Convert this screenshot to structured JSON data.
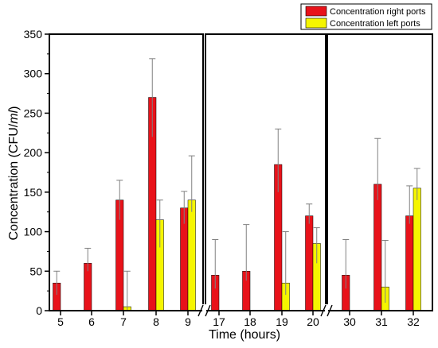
{
  "chart_data": {
    "type": "bar",
    "xlabel": "Time (hours)",
    "ylabel_main": "Concentration (CFU/",
    "ylabel_unit": "ml",
    "ylabel_close": ")",
    "ylim": [
      0,
      350
    ],
    "yticks": [
      "0",
      "50",
      "100",
      "150",
      "200",
      "250",
      "300",
      "350"
    ],
    "ytick_values": [
      0,
      50,
      100,
      150,
      200,
      250,
      300,
      350
    ],
    "grid": false,
    "legend_position": "top-right",
    "categories": [
      "5",
      "6",
      "7",
      "8",
      "9",
      "17",
      "18",
      "19",
      "20",
      "30",
      "31",
      "32"
    ],
    "panels": [
      [
        0,
        4
      ],
      [
        5,
        8
      ],
      [
        9,
        11
      ]
    ],
    "series": [
      {
        "name": "Concentration right ports",
        "color": "#e8121a",
        "values": [
          35,
          60,
          140,
          270,
          130,
          45,
          50,
          185,
          120,
          45,
          160,
          120
        ],
        "error_upper": [
          50,
          79,
          165,
          319,
          151,
          90,
          109,
          230,
          135,
          90,
          218,
          158
        ],
        "error_lower": [
          20,
          50,
          115,
          220,
          110,
          28,
          38,
          150,
          110,
          28,
          140,
          110
        ]
      },
      {
        "name": "Concentration left ports",
        "color": "#f5f500",
        "values": [
          0,
          0,
          5,
          115,
          140,
          0,
          0,
          35,
          85,
          0,
          30,
          155
        ],
        "error_upper": [
          null,
          null,
          50,
          140,
          196,
          null,
          null,
          100,
          105,
          null,
          89,
          180
        ],
        "error_lower": [
          null,
          null,
          0,
          80,
          125,
          null,
          null,
          20,
          60,
          null,
          10,
          140
        ]
      }
    ]
  }
}
